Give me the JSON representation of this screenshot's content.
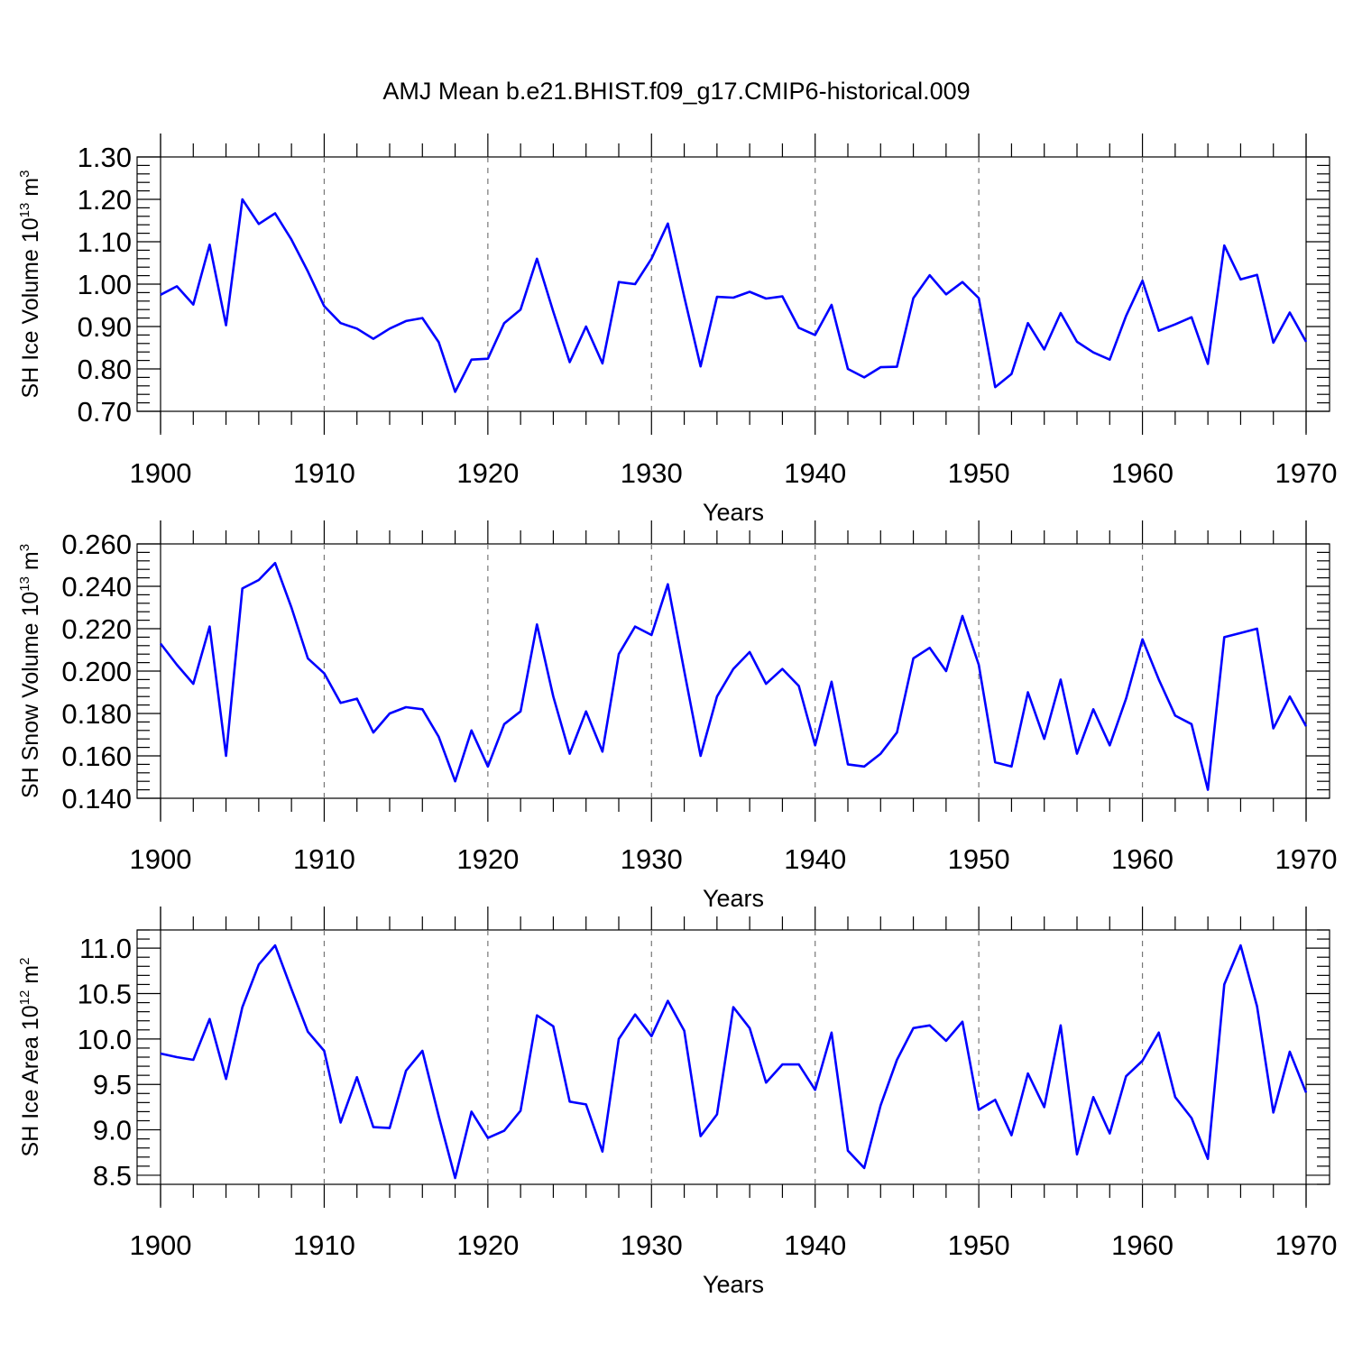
{
  "title": "AMJ Mean b.e21.BHIST.f09_g17.CMIP6-historical.009",
  "colors": {
    "series": "#0000ff",
    "frame": "#000000",
    "grid": "#777777"
  },
  "chart_data": [
    {
      "type": "line",
      "ylabel": {
        "main": "SH Ice Volume 10",
        "exp": "13",
        "unit": "m",
        "unit_exp": "3"
      },
      "xlabel": "Years",
      "xlim": [
        1900,
        1970
      ],
      "ylim": [
        0.7,
        1.3
      ],
      "x_ticks": [
        1900,
        1910,
        1920,
        1930,
        1940,
        1950,
        1960,
        1970
      ],
      "x_tick_labels": [
        "1900",
        "1910",
        "1920",
        "1930",
        "1940",
        "1950",
        "1960",
        "1970"
      ],
      "y_ticks": [
        0.7,
        0.8,
        0.9,
        1.0,
        1.1,
        1.2,
        1.3
      ],
      "y_tick_labels": [
        "0.70",
        "0.80",
        "0.90",
        "1.00",
        "1.10",
        "1.20",
        "1.30"
      ],
      "grid": "vertical dashed at major x ticks",
      "series": [
        {
          "name": "SH Ice Volume",
          "x_start": 1900,
          "values": [
            0.975,
            0.995,
            0.952,
            1.093,
            0.903,
            1.2,
            1.142,
            1.167,
            1.105,
            1.03,
            0.948,
            0.908,
            0.895,
            0.871,
            0.895,
            0.913,
            0.92,
            0.863,
            0.746,
            0.822,
            0.824,
            0.908,
            0.94,
            1.06,
            0.935,
            0.816,
            0.9,
            0.813,
            1.005,
            1.0,
            1.06,
            1.143,
            0.97,
            0.806,
            0.97,
            0.968,
            0.982,
            0.966,
            0.971,
            0.897,
            0.88,
            0.951,
            0.8,
            0.78,
            0.804,
            0.805,
            0.967,
            1.021,
            0.976,
            1.005,
            0.967,
            0.757,
            0.788,
            0.908,
            0.846,
            0.932,
            0.864,
            0.839,
            0.822,
            0.925,
            1.008,
            0.89,
            0.905,
            0.922,
            0.812,
            1.091,
            1.011,
            1.022,
            0.862,
            0.933,
            0.864
          ]
        }
      ]
    },
    {
      "type": "line",
      "ylabel": {
        "main": "SH Snow Volume 10",
        "exp": "13",
        "unit": "m",
        "unit_exp": "3"
      },
      "xlabel": "Years",
      "xlim": [
        1900,
        1970
      ],
      "ylim": [
        0.14,
        0.26
      ],
      "x_ticks": [
        1900,
        1910,
        1920,
        1930,
        1940,
        1950,
        1960,
        1970
      ],
      "x_tick_labels": [
        "1900",
        "1910",
        "1920",
        "1930",
        "1940",
        "1950",
        "1960",
        "1970"
      ],
      "y_ticks": [
        0.14,
        0.16,
        0.18,
        0.2,
        0.22,
        0.24,
        0.26
      ],
      "y_tick_labels": [
        "0.140",
        "0.160",
        "0.180",
        "0.200",
        "0.220",
        "0.240",
        "0.260"
      ],
      "grid": "vertical dashed at major x ticks",
      "series": [
        {
          "name": "SH Snow Volume",
          "x_start": 1900,
          "values": [
            0.213,
            0.203,
            0.194,
            0.221,
            0.16,
            0.239,
            0.243,
            0.251,
            0.23,
            0.206,
            0.199,
            0.185,
            0.187,
            0.171,
            0.18,
            0.183,
            0.182,
            0.169,
            0.148,
            0.172,
            0.155,
            0.175,
            0.181,
            0.222,
            0.188,
            0.161,
            0.181,
            0.162,
            0.208,
            0.221,
            0.217,
            0.241,
            0.2,
            0.16,
            0.188,
            0.201,
            0.209,
            0.194,
            0.201,
            0.193,
            0.165,
            0.195,
            0.156,
            0.155,
            0.161,
            0.171,
            0.206,
            0.211,
            0.2,
            0.226,
            0.203,
            0.157,
            0.155,
            0.19,
            0.168,
            0.196,
            0.161,
            0.182,
            0.165,
            0.187,
            0.215,
            0.196,
            0.179,
            0.175,
            0.144,
            0.216,
            0.218,
            0.22,
            0.173,
            0.188,
            0.174
          ]
        }
      ]
    },
    {
      "type": "line",
      "ylabel": {
        "main": "SH Ice Area 10",
        "exp": "12",
        "unit": "m",
        "unit_exp": "2"
      },
      "xlabel": "Years",
      "xlim": [
        1900,
        1970
      ],
      "ylim": [
        8.4,
        11.2
      ],
      "x_ticks": [
        1900,
        1910,
        1920,
        1930,
        1940,
        1950,
        1960,
        1970
      ],
      "x_tick_labels": [
        "1900",
        "1910",
        "1920",
        "1930",
        "1940",
        "1950",
        "1960",
        "1970"
      ],
      "y_ticks": [
        8.5,
        9.0,
        9.5,
        10.0,
        10.5,
        11.0
      ],
      "y_tick_labels": [
        "8.5",
        "9.0",
        "9.5",
        "10.0",
        "10.5",
        "11.0"
      ],
      "grid": "vertical dashed at major x ticks",
      "series": [
        {
          "name": "SH Ice Area",
          "x_start": 1900,
          "values": [
            9.84,
            9.8,
            9.77,
            10.22,
            9.56,
            10.35,
            10.82,
            11.03,
            10.55,
            10.08,
            9.87,
            9.08,
            9.58,
            9.03,
            9.02,
            9.65,
            9.87,
            9.15,
            8.47,
            9.2,
            8.91,
            8.99,
            9.21,
            10.26,
            10.14,
            9.31,
            9.28,
            8.76,
            10.0,
            10.27,
            10.03,
            10.42,
            10.09,
            8.93,
            9.17,
            10.35,
            10.12,
            9.52,
            9.72,
            9.72,
            9.44,
            10.07,
            8.77,
            8.58,
            9.27,
            9.77,
            10.12,
            10.15,
            9.98,
            10.19,
            9.22,
            9.33,
            8.94,
            9.62,
            9.25,
            10.15,
            8.73,
            9.36,
            8.96,
            9.59,
            9.76,
            10.07,
            9.36,
            9.13,
            8.68,
            10.6,
            11.03,
            10.36,
            9.19,
            9.86,
            9.41
          ]
        }
      ]
    }
  ]
}
